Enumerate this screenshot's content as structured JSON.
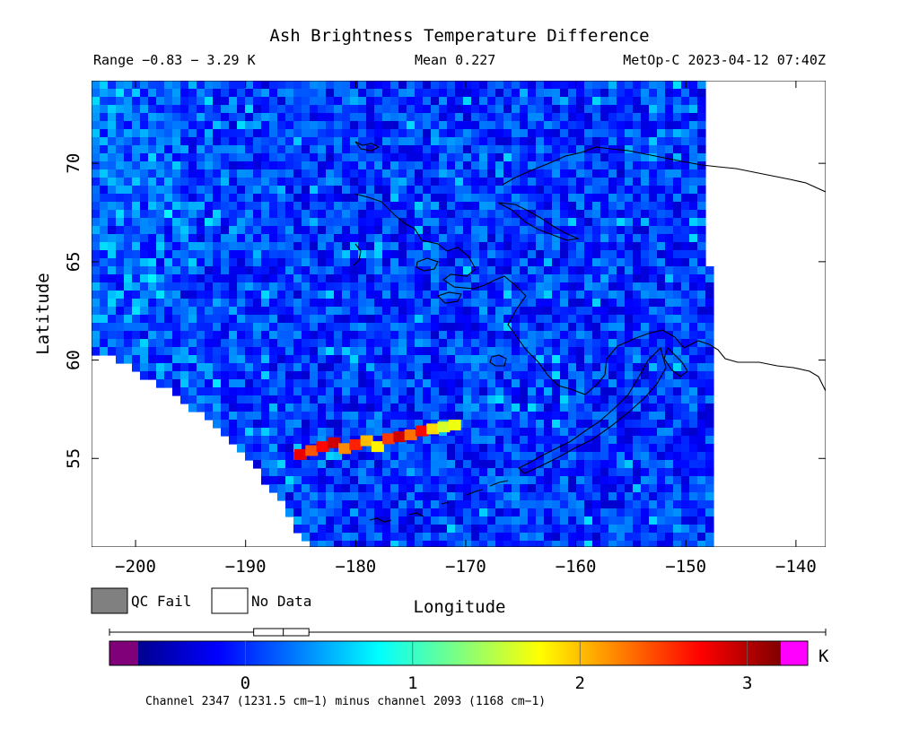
{
  "header": {
    "title": "Ash Brightness Temperature Difference",
    "range_text": "Range −0.83 − 3.29 K",
    "mean_text": "Mean 0.227",
    "satellite_time_text": "MetOp-C 2023-04-12 07:40Z"
  },
  "map": {
    "x_axis_label": "Longitude",
    "y_axis_label": "Latitude",
    "x_ticks": [
      {
        "value": -200,
        "label": "−200"
      },
      {
        "value": -190,
        "label": "−190"
      },
      {
        "value": -180,
        "label": "−180"
      },
      {
        "value": -170,
        "label": "−170"
      },
      {
        "value": -160,
        "label": "−160"
      },
      {
        "value": -150,
        "label": "−150"
      },
      {
        "value": -140,
        "label": "−140"
      }
    ],
    "y_ticks": [
      {
        "value": 55,
        "label": "55"
      },
      {
        "value": 60,
        "label": "60"
      },
      {
        "value": 65,
        "label": "65"
      },
      {
        "value": 70,
        "label": "70"
      }
    ],
    "xlim": [
      -204,
      -137.3
    ],
    "ylim": [
      50.5,
      74.2
    ],
    "ash_plume": [
      {
        "lon": -185.0,
        "lat": 55.2,
        "value": 2.8
      },
      {
        "lon": -184.0,
        "lat": 55.4,
        "value": 2.4
      },
      {
        "lon": -183.0,
        "lat": 55.6,
        "value": 2.7
      },
      {
        "lon": -182.0,
        "lat": 55.8,
        "value": 2.9
      },
      {
        "lon": -181.0,
        "lat": 55.5,
        "value": 2.2
      },
      {
        "lon": -180.0,
        "lat": 55.7,
        "value": 2.6
      },
      {
        "lon": -179.0,
        "lat": 55.9,
        "value": 2.0
      },
      {
        "lon": -178.0,
        "lat": 55.6,
        "value": 1.8
      },
      {
        "lon": -177.0,
        "lat": 56.0,
        "value": 2.5
      },
      {
        "lon": -176.0,
        "lat": 56.1,
        "value": 2.9
      },
      {
        "lon": -175.0,
        "lat": 56.2,
        "value": 2.3
      },
      {
        "lon": -174.0,
        "lat": 56.4,
        "value": 2.7
      },
      {
        "lon": -173.0,
        "lat": 56.5,
        "value": 1.9
      },
      {
        "lon": -172.0,
        "lat": 56.6,
        "value": 1.6
      },
      {
        "lon": -171.0,
        "lat": 56.7,
        "value": 1.7
      }
    ]
  },
  "legend": {
    "qc_fail_label": "QC Fail",
    "no_data_label": "No Data",
    "qc_fail_color": "#808080",
    "no_data_color": "#ffffff"
  },
  "colorbar": {
    "vmin": -0.64,
    "vmax": 3.2,
    "ticks": [
      {
        "value": 0,
        "label": "0"
      },
      {
        "value": 1,
        "label": "1"
      },
      {
        "value": 2,
        "label": "2"
      },
      {
        "value": 3,
        "label": "3"
      }
    ],
    "unit": "K",
    "under_color": "#80007a",
    "over_color": "#ff00ff",
    "slider_range": [
      0.05,
      0.38
    ],
    "slider_mark": 0.227,
    "caption": "Channel 2347 (1231.5 cm−1) minus channel 2093 (1168 cm−1)"
  }
}
